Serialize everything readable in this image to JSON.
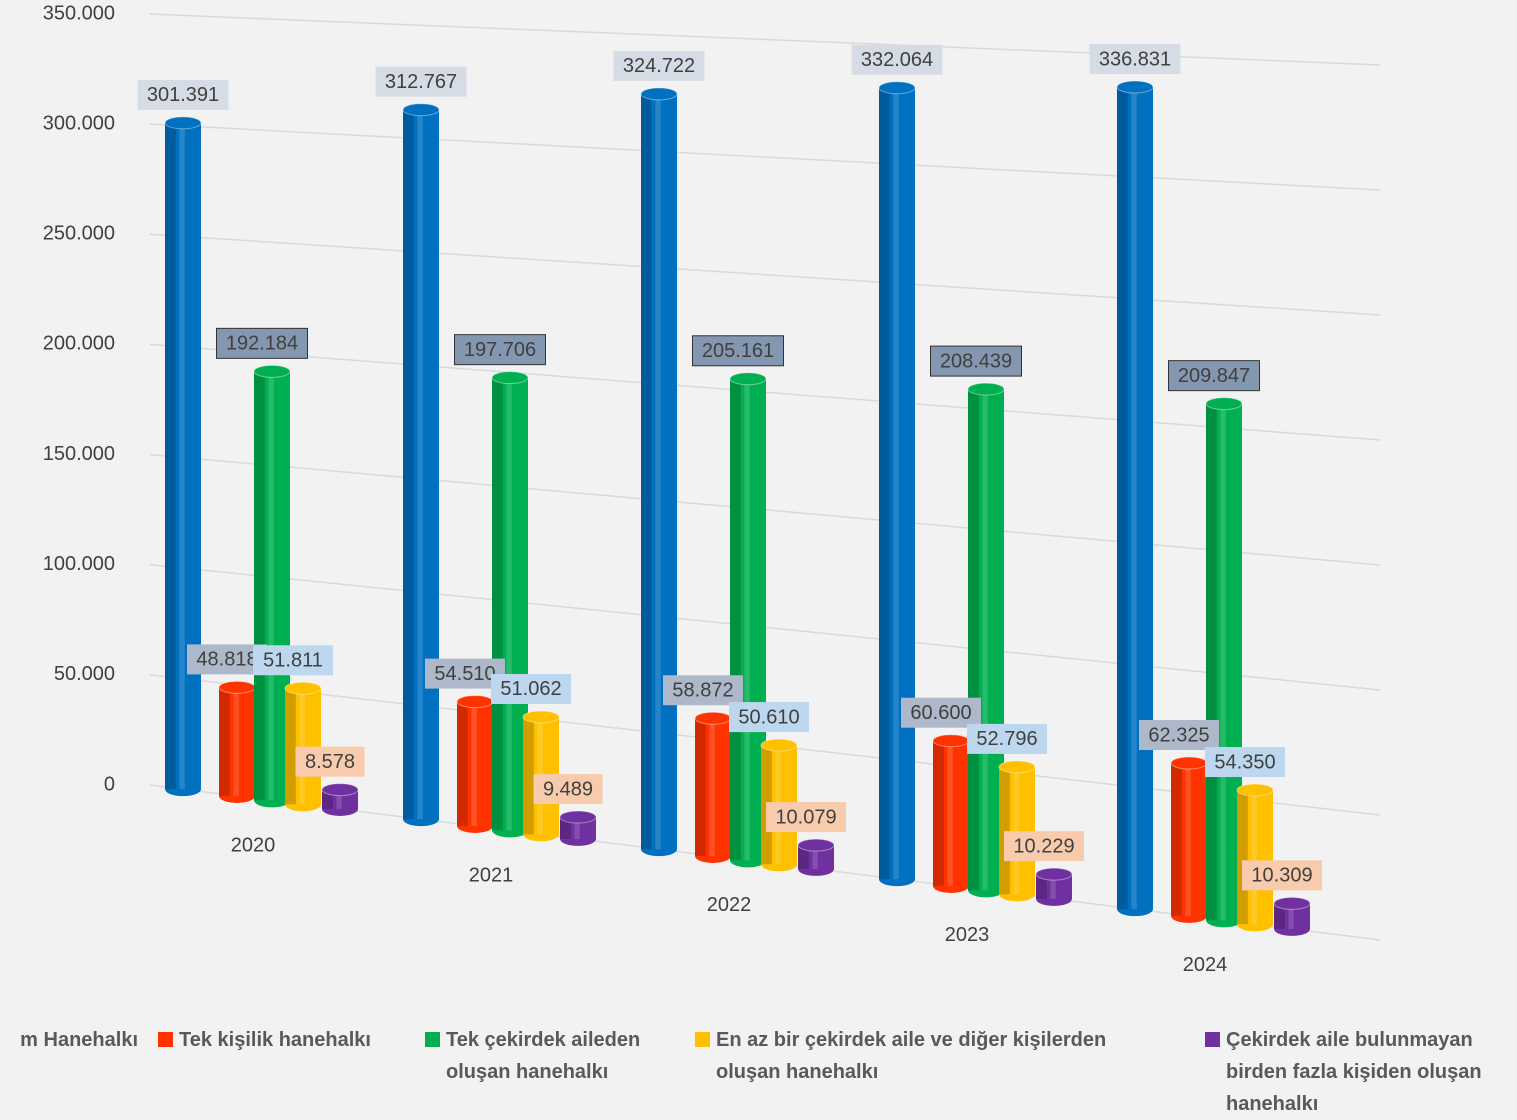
{
  "chart_data": {
    "type": "cylinder3d",
    "categories": [
      "2020",
      "2021",
      "2022",
      "2023",
      "2024"
    ],
    "ylim": [
      0,
      350000
    ],
    "yticks": [
      {
        "value": 0,
        "label": "0"
      },
      {
        "value": 50000,
        "label": "50.000"
      },
      {
        "value": 100000,
        "label": "100.000"
      },
      {
        "value": 150000,
        "label": "150.000"
      },
      {
        "value": 200000,
        "label": "200.000"
      },
      {
        "value": 250000,
        "label": "250.000"
      },
      {
        "value": 300000,
        "label": "300.000"
      },
      {
        "value": 350000,
        "label": "350.000"
      }
    ],
    "grid": true,
    "legend": "bottom",
    "series": [
      {
        "name": "m Hanehalkı",
        "color": "#0070c0",
        "label_color": "#d6dce5",
        "values": [
          301391,
          312767,
          324722,
          332064,
          336831
        ],
        "value_labels": [
          "301.391",
          "312.767",
          "324.722",
          "332.064",
          "336.831"
        ]
      },
      {
        "name": "Tek kişilik hanehalkı",
        "color": "#ff3300",
        "label_color": "#adb9ca",
        "values": [
          48818,
          54510,
          58872,
          60600,
          62325
        ],
        "value_labels": [
          "48.818",
          "54.510",
          "58.872",
          "60.600",
          "62.325"
        ]
      },
      {
        "name": "Tek çekirdek aileden oluşan hanehalkı",
        "color": "#00b050",
        "label_color": "#8497b0",
        "values": [
          192184,
          197706,
          205161,
          208439,
          209847
        ],
        "value_labels": [
          "192.184",
          "197.706",
          "205.161",
          "208.439",
          "209.847"
        ]
      },
      {
        "name": "En az bir çekirdek aile ve diğer kişilerden oluşan hanehalkı",
        "color": "#ffc000",
        "label_color": "#bdd7ee",
        "values": [
          51811,
          51062,
          50610,
          52796,
          54350
        ],
        "value_labels": [
          "51.811",
          "51.062",
          "50.610",
          "52.796",
          "54.350"
        ]
      },
      {
        "name": "Çekirdek aile bulunmayan birden fazla kişiden oluşan hanehalkı",
        "color": "#7030a0",
        "label_color": "#f8cbad",
        "values": [
          8578,
          9489,
          10079,
          10229,
          10309
        ],
        "value_labels": [
          "8.578",
          "9.489",
          "10.079",
          "10.229",
          "10.309"
        ]
      }
    ]
  }
}
